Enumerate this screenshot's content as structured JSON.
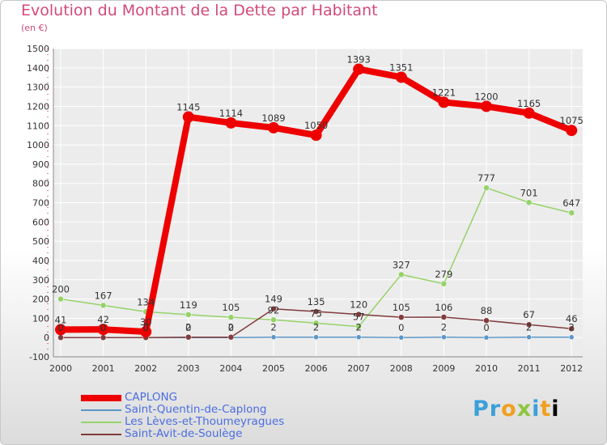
{
  "chart_data": {
    "type": "line",
    "title": "Evolution du Montant de la Dette par Habitant",
    "subtitle": "(en €)",
    "x": [
      "2000",
      "2001",
      "2002",
      "2003",
      "2004",
      "2005",
      "2006",
      "2007",
      "2008",
      "2009",
      "2010",
      "2011",
      "2012"
    ],
    "ylim": [
      -100,
      1500
    ],
    "yticks": [
      -100,
      0,
      100,
      200,
      300,
      400,
      500,
      600,
      700,
      800,
      900,
      1000,
      1100,
      1200,
      1300,
      1400,
      1500
    ],
    "grid": true,
    "legend_position": "bottom-left",
    "series": [
      {
        "name": "CAPLONG",
        "color": "#ee0000",
        "values": [
          41,
          42,
          30,
          1145,
          1114,
          1089,
          1050,
          1393,
          1351,
          1221,
          1200,
          1165,
          1075
        ],
        "labels": [
          "41",
          "42",
          "30",
          "1145",
          "1114",
          "1089",
          "1050",
          "1393",
          "1351",
          "1221",
          "1200",
          "1165",
          "1075"
        ]
      },
      {
        "name": "Saint-Quentin-de-Caplong",
        "color": "#5a96c8",
        "values": [
          0,
          0,
          0,
          0,
          0,
          2,
          2,
          2,
          0,
          2,
          0,
          2,
          2
        ],
        "labels": [
          "0",
          "0",
          "0",
          "0",
          "0",
          "2",
          "2",
          "2",
          "0",
          "2",
          "0",
          "2",
          "2"
        ]
      },
      {
        "name": "Les Lèves-et-Thoumeyragues",
        "color": "#96d269",
        "values": [
          200,
          167,
          134,
          119,
          105,
          92,
          75,
          57,
          327,
          279,
          777,
          701,
          647
        ],
        "labels": [
          "200",
          "167",
          "134",
          "119",
          "105",
          "92",
          "75",
          "57",
          "327",
          "279",
          "777",
          "701",
          "647"
        ]
      },
      {
        "name": "Saint-Avit-de-Soulège",
        "color": "#823c3c",
        "values": [
          0,
          0,
          0,
          2,
          2,
          149,
          135,
          120,
          105,
          106,
          88,
          67,
          46
        ],
        "labels": [
          "0",
          "0",
          "0",
          "2",
          "2",
          "149",
          "135",
          "120",
          "105",
          "106",
          "88",
          "67",
          "46"
        ]
      }
    ]
  },
  "logo": {
    "letters": [
      "P",
      "r",
      "o",
      "x",
      "i",
      "t",
      "i"
    ]
  }
}
